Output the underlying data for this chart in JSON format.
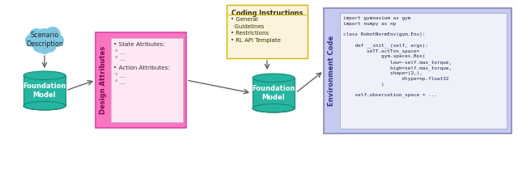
{
  "bg_color": "#ffffff",
  "cloud_color": "#7ec8e3",
  "cloud_text": "Scenario\nDescription",
  "cylinder_color": "#26b5a0",
  "cylinder_edge_color": "#1a8a7a",
  "fm1_text": "Foundation\nModel",
  "fm2_text": "Foundation\nModel",
  "design_box_color": "#f875c0",
  "design_inner_color": "#fde8f4",
  "design_label": "Design Attributes",
  "coding_box_color": "#fdf3dc",
  "coding_border_color": "#c8b400",
  "coding_title": "Coding Instructions",
  "env_box_color": "#c5caf0",
  "env_border_color": "#8888bb",
  "env_label": "Environment Code",
  "arrow_color": "#555555"
}
